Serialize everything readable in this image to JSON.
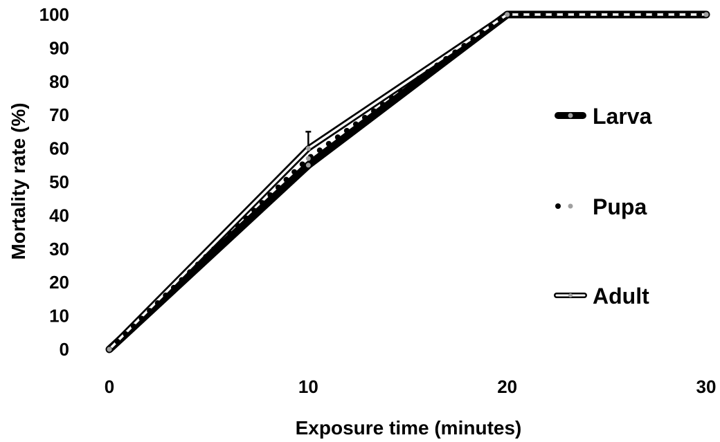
{
  "chart_data": {
    "type": "line",
    "xlabel": "Exposure time (minutes)",
    "ylabel": "Mortality rate (%)",
    "xlim": [
      0,
      30
    ],
    "ylim": [
      0,
      100
    ],
    "x_ticks": [
      "0",
      "10",
      "20",
      "30"
    ],
    "y_ticks": [
      "0",
      "10",
      "20",
      "30",
      "40",
      "50",
      "60",
      "70",
      "80",
      "90",
      "100"
    ],
    "grid": false,
    "legend_position": "right",
    "x": [
      0,
      10,
      20,
      30
    ],
    "series": [
      {
        "name": "Larva",
        "values": [
          0,
          55,
          100,
          100
        ],
        "style": "thick-solid",
        "color": "#000000"
      },
      {
        "name": "Pupa",
        "values": [
          0,
          57,
          100,
          100
        ],
        "style": "dotted",
        "color": "#000000"
      },
      {
        "name": "Adult",
        "values": [
          0,
          60,
          100,
          100
        ],
        "style": "double-outline",
        "color": "#000000",
        "error_bars": [
          0,
          5,
          0,
          0
        ]
      }
    ],
    "marker_color": "#a0a0a0"
  }
}
